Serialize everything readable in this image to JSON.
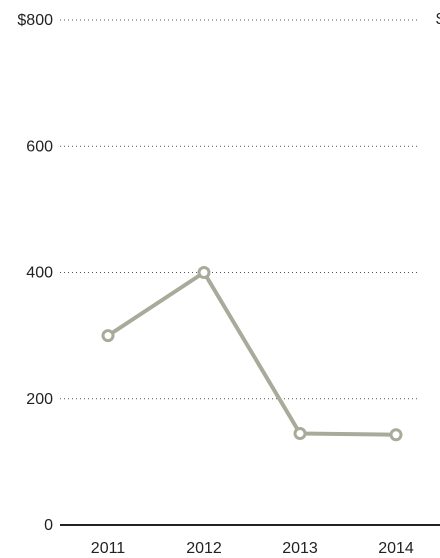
{
  "chart_data": {
    "type": "line",
    "x": [
      "2011",
      "2012",
      "2013",
      "2014"
    ],
    "series": [
      {
        "values": [
          300,
          400,
          145,
          143
        ],
        "color": "#a9aa9a"
      }
    ],
    "ylim": [
      0,
      800
    ],
    "y_ticks": [
      0,
      200,
      400,
      600,
      800
    ],
    "y_tick_labels": [
      "0",
      "200",
      "400",
      "600",
      "$800"
    ],
    "clipped_label": "$",
    "grid": true,
    "grid_style": "dotted",
    "axis_color": "#222222",
    "marker": "hollow-circle"
  }
}
